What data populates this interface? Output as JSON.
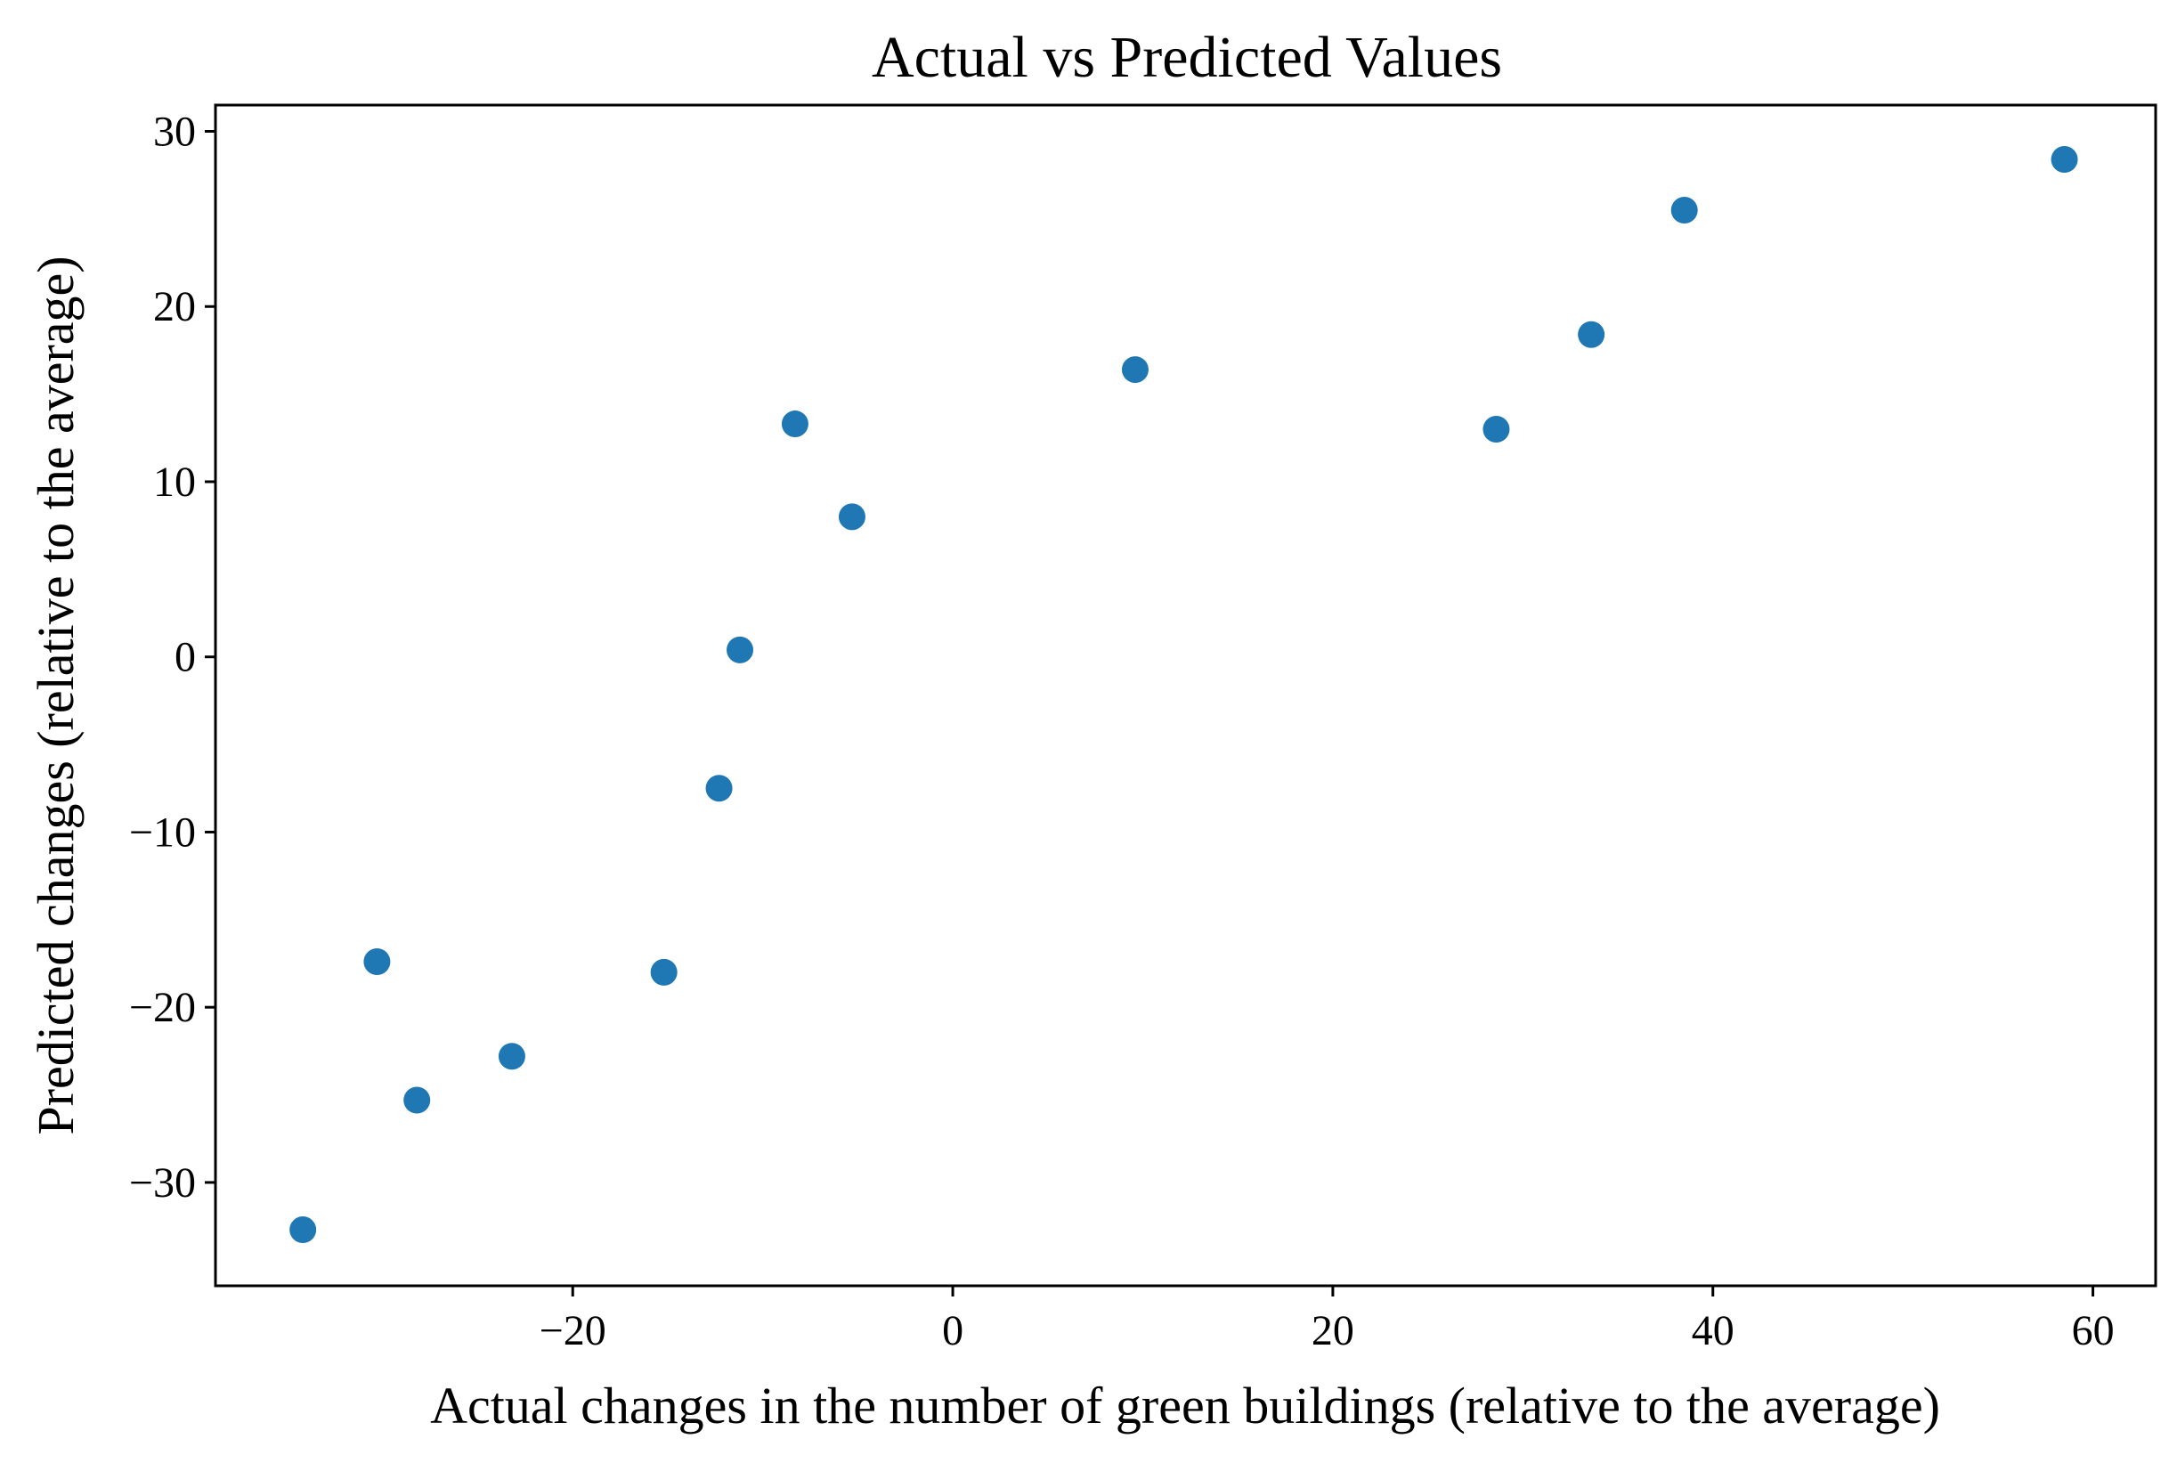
{
  "chart_data": {
    "type": "scatter",
    "title": "Actual vs Predicted Values",
    "xlabel": "Actual changes in the number of green buildings (relative to the average)",
    "ylabel": "Predicted changes (relative to the average)",
    "xlim": [
      -38.8,
      63.3
    ],
    "ylim": [
      -35.9,
      31.5
    ],
    "xticks": [
      -20,
      0,
      20,
      40,
      60
    ],
    "yticks": [
      -30,
      -20,
      -10,
      0,
      10,
      20,
      30
    ],
    "xtick_labels": [
      "−20",
      "0",
      "20",
      "40",
      "60"
    ],
    "ytick_labels": [
      "−30",
      "−20",
      "−10",
      "0",
      "10",
      "20",
      "30"
    ],
    "grid": false,
    "marker_color": "#1f77b4",
    "points": [
      {
        "x": -34.2,
        "y": -32.7
      },
      {
        "x": -30.3,
        "y": -17.4
      },
      {
        "x": -28.2,
        "y": -25.3
      },
      {
        "x": -23.2,
        "y": -22.8
      },
      {
        "x": -15.2,
        "y": -18.0
      },
      {
        "x": -12.3,
        "y": -7.5
      },
      {
        "x": -11.2,
        "y": 0.4
      },
      {
        "x": -8.3,
        "y": 13.3
      },
      {
        "x": -5.3,
        "y": 8.0
      },
      {
        "x": 9.6,
        "y": 16.4
      },
      {
        "x": 28.6,
        "y": 13.0
      },
      {
        "x": 33.6,
        "y": 18.4
      },
      {
        "x": 38.5,
        "y": 25.5
      },
      {
        "x": 58.5,
        "y": 28.4
      }
    ]
  }
}
